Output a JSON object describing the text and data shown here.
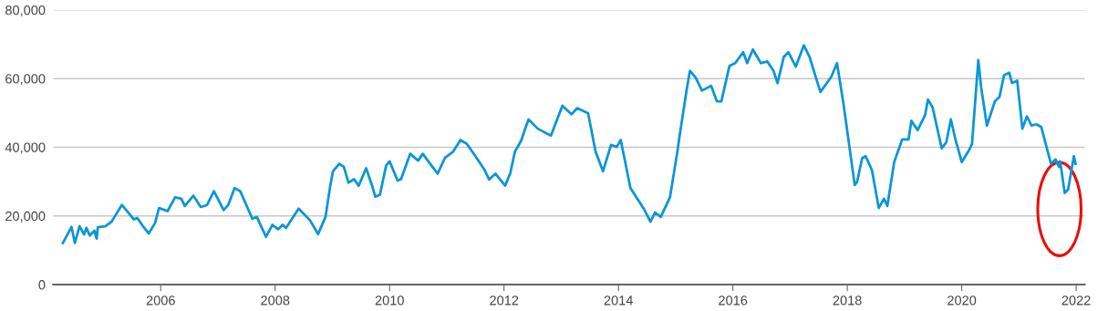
{
  "chart_data": {
    "type": "line",
    "x": [
      2004.29,
      2004.44,
      2004.5,
      2004.58,
      2004.66,
      2004.7,
      2004.76,
      2004.84,
      2004.88,
      2004.9,
      2005.03,
      2005.14,
      2005.32,
      2005.43,
      2005.53,
      2005.59,
      2005.69,
      2005.79,
      2005.9,
      2005.97,
      2006.12,
      2006.25,
      2006.36,
      2006.42,
      2006.57,
      2006.7,
      2006.81,
      2006.93,
      2007.1,
      2007.18,
      2007.29,
      2007.39,
      2007.6,
      2007.68,
      2007.84,
      2007.95,
      2008.05,
      2008.13,
      2008.19,
      2008.41,
      2008.61,
      2008.75,
      2008.88,
      2008.96,
      2009.01,
      2009.12,
      2009.2,
      2009.28,
      2009.38,
      2009.46,
      2009.59,
      2009.7,
      2009.75,
      2009.83,
      2009.94,
      2010.0,
      2010.14,
      2010.2,
      2010.36,
      2010.5,
      2010.58,
      2010.73,
      2010.84,
      2010.97,
      2011.11,
      2011.24,
      2011.35,
      2011.5,
      2011.66,
      2011.74,
      2011.85,
      2012.02,
      2012.11,
      2012.19,
      2012.3,
      2012.38,
      2012.43,
      2012.59,
      2012.82,
      2013.02,
      2013.18,
      2013.28,
      2013.47,
      2013.6,
      2013.73,
      2013.87,
      2013.97,
      2014.04,
      2014.21,
      2014.45,
      2014.56,
      2014.64,
      2014.74,
      2014.9,
      2015.03,
      2015.06,
      2015.19,
      2015.25,
      2015.35,
      2015.46,
      2015.62,
      2015.72,
      2015.8,
      2015.94,
      2016.04,
      2016.18,
      2016.25,
      2016.35,
      2016.49,
      2016.6,
      2016.71,
      2016.78,
      2016.89,
      2016.97,
      2017.1,
      2017.24,
      2017.34,
      2017.53,
      2017.72,
      2017.82,
      2017.93,
      2018.13,
      2018.17,
      2018.26,
      2018.32,
      2018.43,
      2018.55,
      2018.64,
      2018.7,
      2018.82,
      2018.96,
      2019.07,
      2019.12,
      2019.23,
      2019.36,
      2019.41,
      2019.49,
      2019.65,
      2019.73,
      2019.81,
      2019.89,
      2020.0,
      2020.13,
      2020.18,
      2020.29,
      2020.34,
      2020.44,
      2020.58,
      2020.66,
      2020.74,
      2020.83,
      2020.88,
      2020.97,
      2021.06,
      2021.14,
      2021.22,
      2021.3,
      2021.39,
      2021.56,
      2021.64,
      2021.7,
      2021.72,
      2021.8,
      2021.86,
      2021.96,
      2021.99
    ],
    "series": [
      {
        "color": "#0b96d6",
        "values": [
          12100,
          16800,
          12100,
          17000,
          14600,
          16500,
          14300,
          15700,
          13400,
          16700,
          17000,
          18300,
          23200,
          21000,
          19000,
          19400,
          17000,
          14900,
          17900,
          22300,
          21400,
          25400,
          25000,
          22900,
          25900,
          22600,
          23200,
          27200,
          21700,
          23200,
          28100,
          27200,
          19200,
          19700,
          13900,
          17400,
          16100,
          17400,
          16500,
          22100,
          18700,
          14700,
          19700,
          28500,
          33000,
          35200,
          34300,
          29700,
          30700,
          28800,
          33900,
          28500,
          25600,
          26100,
          34700,
          35900,
          30300,
          30700,
          38100,
          36100,
          38100,
          34700,
          32300,
          37000,
          38700,
          42100,
          41000,
          37400,
          33400,
          30600,
          32300,
          28800,
          32500,
          38700,
          41900,
          45900,
          48100,
          45400,
          43400,
          52100,
          49600,
          51400,
          49900,
          38700,
          33000,
          40700,
          40100,
          42100,
          28100,
          21900,
          18300,
          21000,
          19700,
          25400,
          38700,
          42300,
          56500,
          62300,
          60300,
          56500,
          57900,
          53400,
          53400,
          63700,
          64500,
          67700,
          64500,
          68500,
          64500,
          65000,
          62300,
          58700,
          66300,
          67700,
          63500,
          69700,
          66300,
          56100,
          60500,
          64500,
          53000,
          29000,
          29900,
          36800,
          37400,
          33400,
          22300,
          25000,
          22900,
          35700,
          42300,
          42300,
          47700,
          45000,
          49400,
          53900,
          51700,
          39700,
          41400,
          48100,
          42300,
          35700,
          39200,
          41000,
          65400,
          57400,
          46300,
          53400,
          54700,
          61000,
          61700,
          58700,
          59400,
          45400,
          49000,
          46300,
          46700,
          45900,
          35200,
          36500,
          34300,
          35900,
          26700,
          27700,
          37400,
          35200
        ]
      }
    ],
    "xlim": [
      2004.12,
      2022.15
    ],
    "xticks": [
      2006,
      2008,
      2010,
      2012,
      2014,
      2016,
      2018,
      2020,
      2022
    ],
    "ylim": [
      0,
      80000
    ],
    "yticks": [
      0,
      {
        "value": 20000,
        "label": "20,000"
      },
      {
        "value": 40000,
        "label": "40,000"
      },
      {
        "value": 60000,
        "label": "60,000"
      },
      {
        "value": 80000,
        "label": "80,000"
      }
    ],
    "grid": "y",
    "marker": "none",
    "line_style": "solid"
  }
}
